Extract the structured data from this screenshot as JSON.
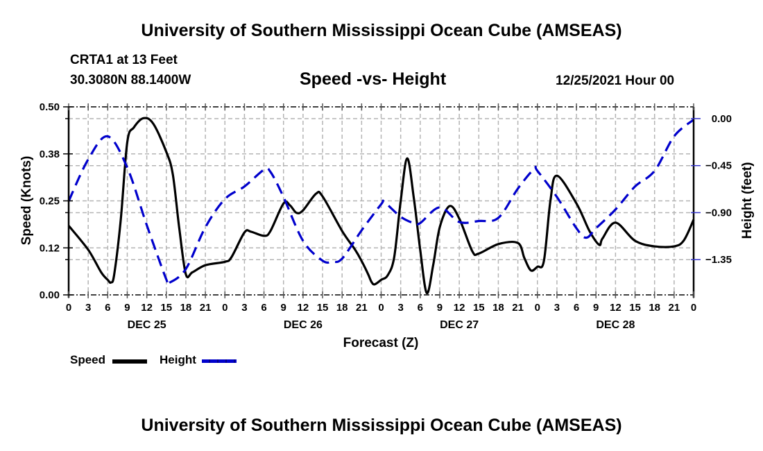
{
  "header": {
    "main_title": "University of Southern Mississippi Ocean Cube (AMSEAS)",
    "station": "CRTA1 at 13 Feet",
    "coordinates": "30.3080N  88.1400W",
    "subtitle": "Speed -vs- Height",
    "run_date": "12/25/2021 Hour 00"
  },
  "footer": {
    "bottom_title": "University of Southern Mississippi Ocean Cube (AMSEAS)"
  },
  "colors": {
    "speed": "#000000",
    "height": "#0000cc",
    "grid": "#b4b4b4"
  },
  "chart_data": {
    "type": "line",
    "title": "Speed -vs- Height",
    "xlabel": "Forecast (Z)",
    "ylabel": "Speed (Knots)",
    "y2label": "Height (feet)",
    "xlim": [
      0,
      96
    ],
    "ylim": [
      0,
      0.5
    ],
    "y2lim": [
      -1.6875,
      0.1125
    ],
    "grid": true,
    "legend_position": "bottom-left",
    "x_ticks": [
      0,
      3,
      6,
      9,
      12,
      15,
      18,
      21,
      24,
      27,
      30,
      33,
      36,
      39,
      42,
      45,
      48,
      51,
      54,
      57,
      60,
      63,
      66,
      69,
      72,
      75,
      78,
      81,
      84,
      87,
      90,
      93,
      96
    ],
    "x_tick_labels": [
      "0",
      "3",
      "6",
      "9",
      "12",
      "15",
      "18",
      "21",
      "0",
      "3",
      "6",
      "9",
      "12",
      "15",
      "18",
      "21",
      "0",
      "3",
      "6",
      "9",
      "12",
      "15",
      "18",
      "21",
      "0",
      "3",
      "6",
      "9",
      "12",
      "15",
      "18",
      "21",
      "0"
    ],
    "day_labels": [
      {
        "x": 12,
        "label": "DEC 25"
      },
      {
        "x": 36,
        "label": "DEC 26"
      },
      {
        "x": 60,
        "label": "DEC 27"
      },
      {
        "x": 84,
        "label": "DEC 28"
      }
    ],
    "y_ticks": [
      0.0,
      0.125,
      0.25,
      0.375,
      0.5
    ],
    "y_tick_labels": [
      "0.00",
      "0.12",
      "0.25",
      "0.38",
      "0.50"
    ],
    "y2_ticks": [
      0.0,
      -0.45,
      -0.9,
      -1.35
    ],
    "y2_tick_labels": [
      "0.00",
      "−0.45",
      "−0.90",
      "−1.35"
    ],
    "series": [
      {
        "name": "Speed",
        "axis": "left",
        "style": "solid",
        "x": [
          0,
          3,
          5,
          6,
          6.5,
          7,
          8,
          9,
          10,
          11.5,
          13,
          15,
          16,
          17,
          18,
          19,
          21,
          24,
          25,
          27,
          28,
          30,
          31,
          33,
          34,
          35,
          36,
          38,
          39,
          42,
          44,
          45,
          46,
          46.5,
          47,
          48,
          49,
          50,
          51,
          52,
          53,
          54,
          55,
          56,
          57,
          58.5,
          60,
          62,
          63,
          66,
          69,
          70,
          71,
          72,
          73,
          74,
          75,
          78,
          80,
          81.5,
          82,
          84,
          87,
          90,
          93,
          94.5,
          96
        ],
        "values": [
          0.184,
          0.12,
          0.06,
          0.04,
          0.033,
          0.055,
          0.2,
          0.406,
          0.445,
          0.47,
          0.455,
          0.38,
          0.32,
          0.175,
          0.055,
          0.06,
          0.079,
          0.088,
          0.1,
          0.166,
          0.168,
          0.157,
          0.17,
          0.243,
          0.238,
          0.218,
          0.225,
          0.269,
          0.262,
          0.17,
          0.12,
          0.09,
          0.055,
          0.035,
          0.028,
          0.04,
          0.052,
          0.1,
          0.25,
          0.363,
          0.26,
          0.12,
          0.005,
          0.08,
          0.18,
          0.236,
          0.203,
          0.116,
          0.11,
          0.135,
          0.138,
          0.098,
          0.065,
          0.075,
          0.09,
          0.25,
          0.317,
          0.243,
          0.17,
          0.133,
          0.15,
          0.192,
          0.144,
          0.129,
          0.129,
          0.145,
          0.2
        ]
      },
      {
        "name": "Height",
        "axis": "right",
        "style": "dashed",
        "x": [
          0,
          3,
          6,
          9,
          12,
          15,
          15.5,
          18,
          21,
          24,
          27,
          30,
          31,
          33,
          36,
          39,
          40.5,
          42,
          45,
          48,
          48.5,
          51,
          53,
          54,
          57,
          60,
          63,
          66,
          69,
          71.5,
          72,
          75,
          78,
          79.5,
          81,
          84,
          87,
          90,
          93,
          96
        ],
        "values": [
          -0.79,
          -0.39,
          -0.17,
          -0.47,
          -1.02,
          -1.54,
          -1.57,
          -1.44,
          -1.04,
          -0.77,
          -0.65,
          -0.49,
          -0.51,
          -0.75,
          -1.17,
          -1.36,
          -1.37,
          -1.34,
          -1.07,
          -0.82,
          -0.8,
          -0.94,
          -1.0,
          -1.0,
          -0.85,
          -0.99,
          -0.98,
          -0.95,
          -0.67,
          -0.48,
          -0.5,
          -0.75,
          -1.05,
          -1.14,
          -1.05,
          -0.87,
          -0.65,
          -0.5,
          -0.17,
          -0.01
        ]
      }
    ],
    "legend": [
      {
        "label": "Speed",
        "style": "solid",
        "color": "#000000"
      },
      {
        "label": "Height",
        "style": "dashed",
        "color": "#0000cc"
      }
    ]
  }
}
